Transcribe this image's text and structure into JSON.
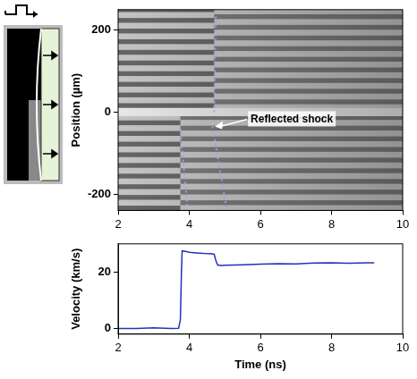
{
  "chart_data": [
    {
      "type": "image",
      "ylabel": "Position (µm)",
      "xlim": [
        2,
        10
      ],
      "xticks": [
        2,
        4,
        6,
        8,
        10
      ],
      "ylim": [
        -240,
        250
      ],
      "yticks": [
        -200,
        0,
        200
      ],
      "series": [
        {
          "type": "line",
          "line_style": "dotted",
          "color": "#a0a0e8",
          "x": [
            3.75,
            3.95
          ],
          "values": [
            -40,
            -235
          ]
        },
        {
          "type": "line",
          "line_style": "dotted",
          "color": "#a0a0e8",
          "x": [
            4.65,
            5.05
          ],
          "values": [
            -35,
            -235
          ]
        },
        {
          "type": "line",
          "line_style": "dotted",
          "color": "#a0a0e8",
          "x": [
            4.7,
            4.75
          ],
          "values": [
            0,
            250
          ]
        }
      ],
      "annotations": [
        {
          "text": "Reflected shock",
          "x": 4.72,
          "y": -35
        }
      ]
    },
    {
      "type": "line",
      "xlabel": "Time (ns)",
      "ylabel": "Velocity (km/s)",
      "xlim": [
        2,
        10
      ],
      "xticks": [
        2,
        4,
        6,
        8,
        10
      ],
      "ylim": [
        -2,
        30
      ],
      "yticks": [
        0,
        20
      ],
      "color": "#2233bb",
      "x": [
        2,
        2.5,
        3,
        3.5,
        3.7,
        3.75,
        3.78,
        3.8,
        3.9,
        4.0,
        4.2,
        4.4,
        4.6,
        4.7,
        4.75,
        4.8,
        4.9,
        5.0,
        5.5,
        6,
        6.5,
        7,
        7.5,
        8,
        8.5,
        9,
        9.2
      ],
      "values": [
        0,
        0,
        0.2,
        0,
        0.1,
        3,
        20,
        27.5,
        27.3,
        27,
        26.8,
        26.6,
        26.5,
        26.3,
        24,
        22.5,
        22.3,
        22.4,
        22.6,
        22.8,
        23,
        22.9,
        23.2,
        23.3,
        23.1,
        23.3,
        23.3
      ]
    }
  ]
}
